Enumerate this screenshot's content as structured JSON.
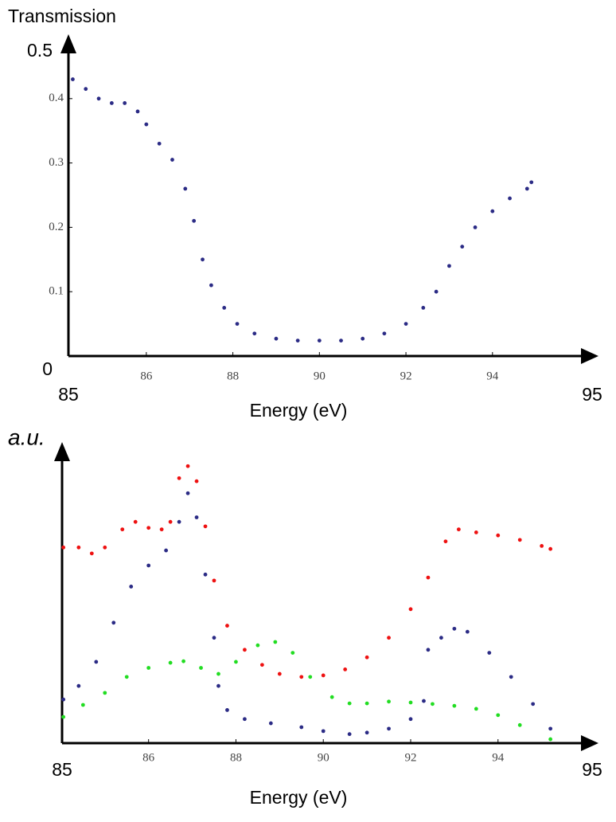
{
  "chart_data": [
    {
      "type": "scatter",
      "y_label": "Transmission",
      "x_label": "Energy (eV)",
      "x_range_labels": [
        "85",
        "95"
      ],
      "xlim": [
        84.2,
        96.45
      ],
      "xticks": [
        86,
        88,
        90,
        92,
        94
      ],
      "ylim": [
        0,
        0.5
      ],
      "yticks": [
        0,
        0.1,
        0.2,
        0.3,
        0.4,
        0.5
      ],
      "series": [
        {
          "name": "Transmission",
          "color": "#2b2b85",
          "x": [
            84.3,
            84.6,
            84.9,
            85.2,
            85.5,
            85.8,
            86.0,
            86.3,
            86.6,
            86.9,
            87.1,
            87.3,
            87.5,
            87.8,
            88.1,
            88.5,
            89.0,
            89.5,
            90.0,
            90.5,
            91.0,
            91.5,
            92.0,
            92.4,
            92.7,
            93.0,
            93.3,
            93.6,
            94.0,
            94.4,
            94.8,
            94.9
          ],
          "values": [
            0.43,
            0.415,
            0.4,
            0.393,
            0.393,
            0.38,
            0.36,
            0.33,
            0.305,
            0.26,
            0.21,
            0.15,
            0.11,
            0.075,
            0.05,
            0.035,
            0.027,
            0.024,
            0.024,
            0.024,
            0.027,
            0.035,
            0.05,
            0.075,
            0.1,
            0.14,
            0.17,
            0.2,
            0.225,
            0.245,
            0.26,
            0.27
          ]
        }
      ]
    },
    {
      "type": "scatter",
      "y_label": "a.u.",
      "x_label": "Energy (eV)",
      "x_range_labels": [
        "85",
        "95"
      ],
      "xlim": [
        84.02,
        96.3
      ],
      "xticks": [
        86,
        88,
        90,
        92,
        94
      ],
      "ylim": [
        0,
        1
      ],
      "series": [
        {
          "name": "red",
          "color": "#ee1111",
          "x": [
            84.05,
            84.4,
            84.7,
            85.0,
            85.4,
            85.7,
            86.0,
            86.3,
            86.5,
            86.7,
            86.9,
            87.1,
            87.3,
            87.5,
            87.8,
            88.2,
            88.6,
            89.0,
            89.5,
            90.0,
            90.5,
            91.0,
            91.5,
            92.0,
            92.4,
            92.8,
            93.1,
            93.5,
            94.0,
            94.5,
            95.0,
            95.2
          ],
          "values": [
            0.65,
            0.65,
            0.63,
            0.65,
            0.71,
            0.735,
            0.715,
            0.71,
            0.735,
            0.88,
            0.92,
            0.87,
            0.72,
            0.54,
            0.39,
            0.31,
            0.26,
            0.23,
            0.22,
            0.225,
            0.245,
            0.285,
            0.35,
            0.445,
            0.55,
            0.67,
            0.71,
            0.7,
            0.69,
            0.675,
            0.655,
            0.645
          ]
        },
        {
          "name": "blue",
          "color": "#2b2b85",
          "x": [
            84.05,
            84.4,
            84.8,
            85.2,
            85.6,
            86.0,
            86.4,
            86.7,
            86.9,
            87.1,
            87.3,
            87.5,
            87.6,
            87.8,
            88.2,
            88.8,
            89.5,
            90.0,
            90.6,
            91.0,
            91.5,
            92.0,
            92.3,
            92.4,
            92.7,
            93.0,
            93.3,
            93.8,
            94.3,
            94.8,
            95.2
          ],
          "values": [
            0.145,
            0.19,
            0.27,
            0.4,
            0.52,
            0.59,
            0.64,
            0.735,
            0.83,
            0.75,
            0.56,
            0.35,
            0.19,
            0.11,
            0.08,
            0.066,
            0.053,
            0.04,
            0.03,
            0.035,
            0.048,
            0.08,
            0.14,
            0.31,
            0.35,
            0.38,
            0.37,
            0.3,
            0.22,
            0.13,
            0.048
          ]
        },
        {
          "name": "green",
          "color": "#22dd22",
          "x": [
            84.05,
            84.5,
            85.0,
            85.5,
            86.0,
            86.5,
            86.8,
            87.2,
            87.6,
            88.0,
            88.5,
            88.9,
            89.3,
            89.7,
            90.2,
            90.6,
            91.0,
            91.5,
            92.0,
            92.5,
            93.0,
            93.5,
            94.0,
            94.5,
            95.2
          ],
          "values": [
            0.087,
            0.127,
            0.167,
            0.22,
            0.25,
            0.267,
            0.272,
            0.25,
            0.23,
            0.27,
            0.325,
            0.336,
            0.3,
            0.22,
            0.153,
            0.132,
            0.132,
            0.138,
            0.135,
            0.13,
            0.124,
            0.114,
            0.093,
            0.06,
            0.013
          ]
        }
      ]
    }
  ]
}
